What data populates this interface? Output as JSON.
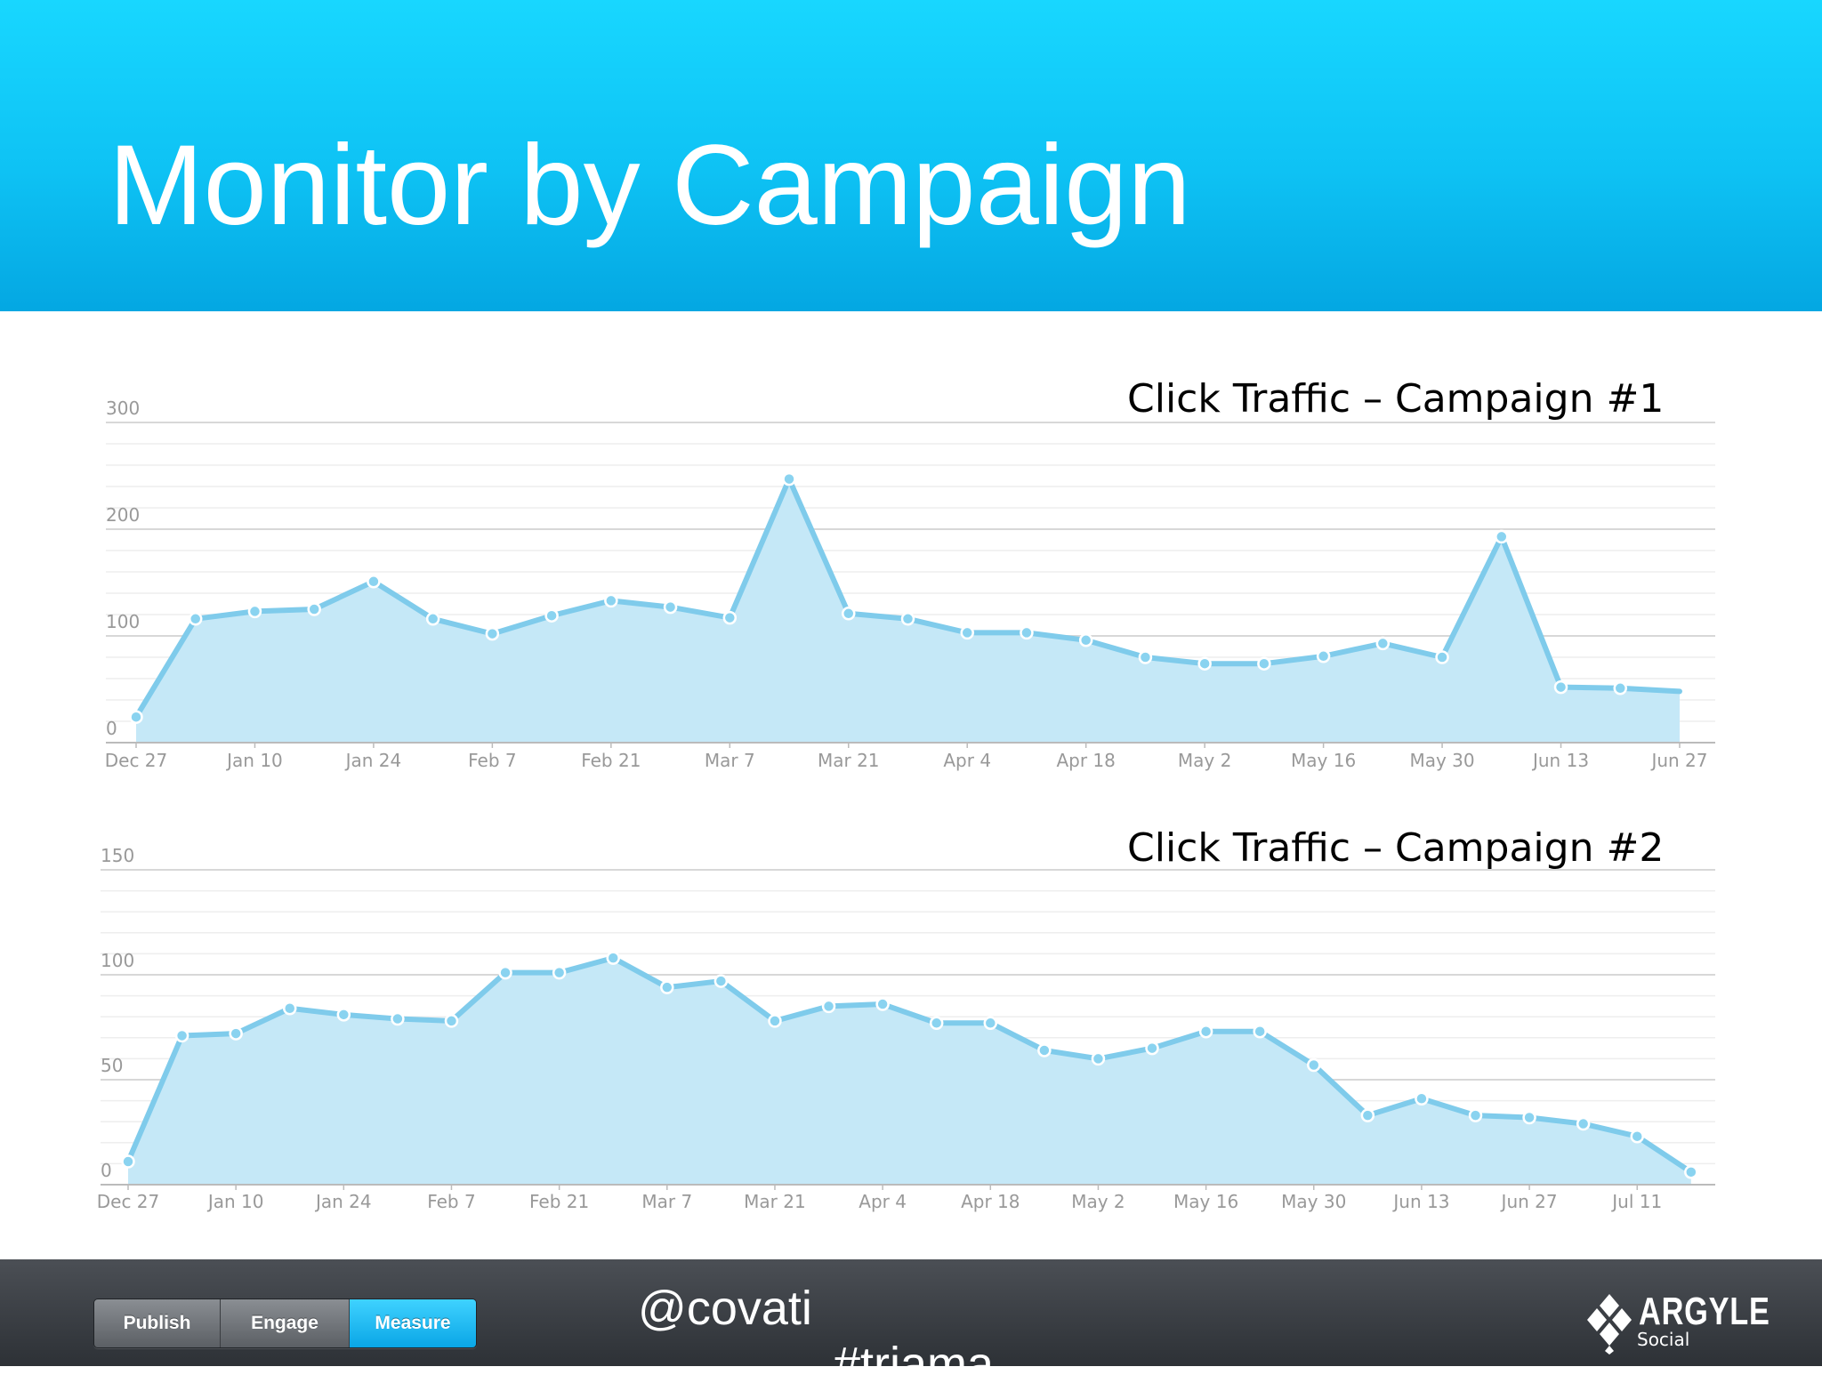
{
  "slide": {
    "title": "Monitor by Campaign"
  },
  "colors": {
    "line": "#7fcbeb",
    "fill": "#c5e8f7",
    "grid": "#d8d8d8",
    "tick": "#999999"
  },
  "chart_data": [
    {
      "type": "area",
      "title": "Click Traffic – Campaign #1",
      "xlabel": "",
      "ylabel": "",
      "ylim": [
        0,
        300
      ],
      "yticks": [
        0,
        100,
        200,
        300
      ],
      "x_tick_labels": [
        "Dec 27",
        "Jan 10",
        "Jan 24",
        "Feb 7",
        "Feb 21",
        "Mar 7",
        "Mar 21",
        "Apr 4",
        "Apr 18",
        "May 2",
        "May 16",
        "May 30",
        "Jun 13",
        "Jun 27"
      ],
      "grid": true,
      "series": [
        {
          "x": [
            "Dec 27",
            "Jan 3",
            "Jan 10",
            "Jan 17",
            "Jan 24",
            "Jan 31",
            "Feb 7",
            "Feb 14",
            "Feb 21",
            "Feb 28",
            "Mar 7",
            "Mar 14",
            "Mar 21",
            "Mar 28",
            "Apr 4",
            "Apr 11",
            "Apr 18",
            "Apr 25",
            "May 2",
            "May 9",
            "May 16",
            "May 23",
            "May 30",
            "Jun 6",
            "Jun 13",
            "Jun 20",
            "Jun 27"
          ],
          "values": [
            24,
            116,
            123,
            125,
            151,
            116,
            102,
            119,
            133,
            127,
            117,
            247,
            121,
            116,
            103,
            103,
            96,
            80,
            74,
            74,
            81,
            93,
            80,
            193,
            52,
            51,
            48
          ]
        }
      ]
    },
    {
      "type": "area",
      "title": "Click Traffic – Campaign #2",
      "xlabel": "",
      "ylabel": "",
      "ylim": [
        0,
        150
      ],
      "yticks": [
        0,
        50,
        100,
        150
      ],
      "x_tick_labels": [
        "Dec 27",
        "Jan 10",
        "Jan 24",
        "Feb 7",
        "Feb 21",
        "Mar 7",
        "Mar 21",
        "Apr 4",
        "Apr 18",
        "May 2",
        "May 16",
        "May 30",
        "Jun 13",
        "Jun 27",
        "Jul 11"
      ],
      "grid": true,
      "series": [
        {
          "x": [
            "Dec 27",
            "Jan 3",
            "Jan 10",
            "Jan 17",
            "Jan 24",
            "Jan 31",
            "Feb 7",
            "Feb 14",
            "Feb 21",
            "Feb 28",
            "Mar 7",
            "Mar 14",
            "Mar 21",
            "Mar 28",
            "Apr 4",
            "Apr 11",
            "Apr 18",
            "Apr 25",
            "May 2",
            "May 9",
            "May 16",
            "May 23",
            "May 30",
            "Jun 6",
            "Jun 13",
            "Jun 20",
            "Jun 27",
            "Jul 4",
            "Jul 11",
            "Jul 18"
          ],
          "values": [
            11,
            71,
            72,
            84,
            81,
            79,
            78,
            101,
            101,
            108,
            94,
            97,
            78,
            85,
            86,
            77,
            77,
            64,
            60,
            65,
            73,
            73,
            57,
            33,
            41,
            33,
            32,
            29,
            23,
            6
          ]
        }
      ]
    }
  ],
  "footer": {
    "nav": [
      {
        "label": "Publish",
        "active": false
      },
      {
        "label": "Engage",
        "active": false
      },
      {
        "label": "Measure",
        "active": true
      }
    ],
    "handle": "@covati",
    "hashtag": "#triama",
    "logo": {
      "word": "ARGYLE",
      "sub": "Social"
    }
  }
}
